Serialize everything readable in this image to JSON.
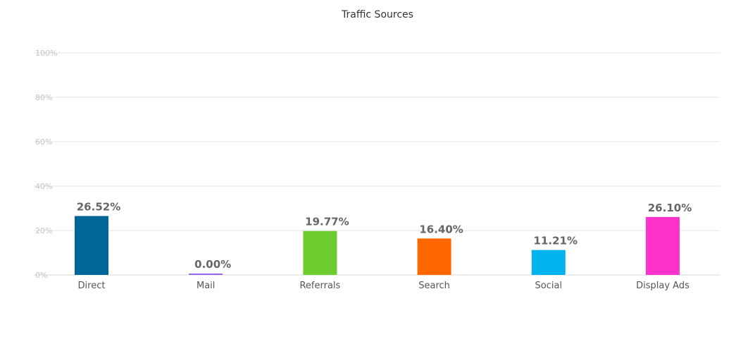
{
  "chart_data": {
    "type": "bar",
    "title": "Traffic Sources",
    "xlabel": "",
    "ylabel": "",
    "categories": [
      "Direct",
      "Mail",
      "Referrals",
      "Search",
      "Social",
      "Display Ads"
    ],
    "values": [
      26.52,
      0.0,
      19.77,
      16.4,
      11.21,
      26.1
    ],
    "value_labels": [
      "26.52%",
      "0.00%",
      "19.77%",
      "16.40%",
      "11.21%",
      "26.10%"
    ],
    "colors": [
      "#006699",
      "#9966ee",
      "#6dcc2f",
      "#ff6600",
      "#00b3ee",
      "#ff33cc"
    ],
    "ylim": [
      0,
      100
    ],
    "yticks": [
      0,
      20,
      40,
      60,
      80,
      100
    ],
    "ytick_labels": [
      "0%",
      "20%",
      "40%",
      "60%",
      "80%",
      "100%"
    ],
    "grid": true,
    "legend": "none"
  }
}
